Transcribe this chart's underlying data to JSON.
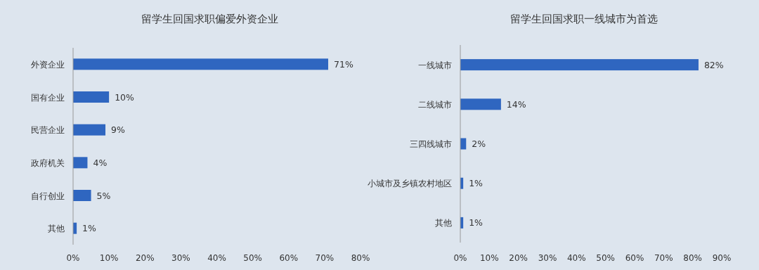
{
  "chart_data": [
    {
      "type": "bar",
      "orientation": "horizontal",
      "title": "留学生回国求职偏爱外资企业",
      "categories": [
        "外资企业",
        "国有企业",
        "民营企业",
        "政府机关",
        "自行创业",
        "其他"
      ],
      "values": [
        71,
        10,
        9,
        4,
        5,
        1
      ],
      "color": "#2f66c0",
      "value_labels": [
        "71%",
        "10%",
        "9%",
        "4%",
        "5%",
        "1%"
      ],
      "xlim": [
        0,
        80
      ],
      "xticks": [
        {
          "value": 0,
          "label": "0%"
        },
        {
          "value": 10,
          "label": "10%"
        },
        {
          "value": 20,
          "label": "20%"
        },
        {
          "value": 30,
          "label": "30%"
        },
        {
          "value": 40,
          "label": "40%"
        },
        {
          "value": 50,
          "label": "50%"
        },
        {
          "value": 60,
          "label": "60%"
        },
        {
          "value": 70,
          "label": "70%"
        },
        {
          "value": 80,
          "label": "80%"
        }
      ],
      "grid": false
    },
    {
      "type": "bar",
      "orientation": "horizontal",
      "title": "留学生回国求职一线城市为首选",
      "categories": [
        "一线城市",
        "二线城市",
        "三四线城市",
        "小城市及乡镇农村地区",
        "其他"
      ],
      "values": [
        82,
        14,
        2,
        1,
        1
      ],
      "color": "#2f66c0",
      "value_labels": [
        "82%",
        "14%",
        "2%",
        "1%",
        "1%"
      ],
      "xlim": [
        0,
        90
      ],
      "xticks": [
        {
          "value": 0,
          "label": "0%"
        },
        {
          "value": 10,
          "label": "10%"
        },
        {
          "value": 20,
          "label": "20%"
        },
        {
          "value": 30,
          "label": "30%"
        },
        {
          "value": 40,
          "label": "40%"
        },
        {
          "value": 50,
          "label": "50%"
        },
        {
          "value": 60,
          "label": "60%"
        },
        {
          "value": 70,
          "label": "70%"
        },
        {
          "value": 80,
          "label": "80%"
        },
        {
          "value": 90,
          "label": "90%"
        }
      ],
      "grid": false
    }
  ]
}
